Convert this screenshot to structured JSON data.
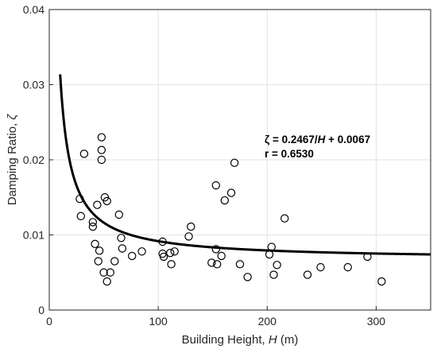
{
  "chart_data": {
    "type": "scatter",
    "grid": true,
    "x_axis": {
      "label_prefix": "Building Height, ",
      "label_var": "H",
      "label_suffix": " (m)",
      "range": [
        0,
        350
      ],
      "ticks": [
        0,
        100,
        200,
        300
      ],
      "tick_labels": [
        "0",
        "100",
        "200",
        "300"
      ]
    },
    "y_axis": {
      "label_prefix": "Damping Ratio, ",
      "label_var": "ζ",
      "range": [
        0,
        0.04
      ],
      "ticks": [
        0,
        0.01,
        0.02,
        0.03,
        0.04
      ],
      "tick_labels": [
        "0",
        "0.01",
        "0.02",
        "0.03",
        "0.04"
      ]
    },
    "fit": {
      "coef_a": 0.2467,
      "coef_b": 0.0067,
      "x_start": 10,
      "x_end": 350,
      "equation_lhs": "ζ",
      "equation_mid": " = 0.2467/",
      "equation_var": "H",
      "equation_rhs": " + 0.0067",
      "r_text": "r = 0.6530"
    },
    "points": [
      [
        28,
        0.0148
      ],
      [
        29,
        0.0125
      ],
      [
        32,
        0.0208
      ],
      [
        40,
        0.0117
      ],
      [
        40,
        0.0111
      ],
      [
        42,
        0.0088
      ],
      [
        44,
        0.014
      ],
      [
        45,
        0.0065
      ],
      [
        46,
        0.0079
      ],
      [
        48,
        0.023
      ],
      [
        48,
        0.0213
      ],
      [
        48,
        0.02
      ],
      [
        50,
        0.005
      ],
      [
        51,
        0.015
      ],
      [
        53,
        0.0145
      ],
      [
        53,
        0.0038
      ],
      [
        56,
        0.005
      ],
      [
        60,
        0.0065
      ],
      [
        64,
        0.0127
      ],
      [
        66,
        0.0096
      ],
      [
        67,
        0.0082
      ],
      [
        76,
        0.0072
      ],
      [
        85,
        0.0078
      ],
      [
        104,
        0.0091
      ],
      [
        104,
        0.0075
      ],
      [
        105,
        0.0071
      ],
      [
        111,
        0.0076
      ],
      [
        112,
        0.0061
      ],
      [
        115,
        0.0078
      ],
      [
        128,
        0.0098
      ],
      [
        130,
        0.0111
      ],
      [
        149,
        0.0063
      ],
      [
        153,
        0.0166
      ],
      [
        153,
        0.0081
      ],
      [
        154,
        0.0061
      ],
      [
        158,
        0.0072
      ],
      [
        161,
        0.0146
      ],
      [
        167,
        0.0156
      ],
      [
        170,
        0.0196
      ],
      [
        175,
        0.0061
      ],
      [
        182,
        0.0044
      ],
      [
        202,
        0.0074
      ],
      [
        204,
        0.0084
      ],
      [
        206,
        0.0047
      ],
      [
        209,
        0.006
      ],
      [
        216,
        0.0122
      ],
      [
        237,
        0.0047
      ],
      [
        249,
        0.0057
      ],
      [
        274,
        0.0057
      ],
      [
        292,
        0.0071
      ],
      [
        305,
        0.0038
      ]
    ]
  }
}
